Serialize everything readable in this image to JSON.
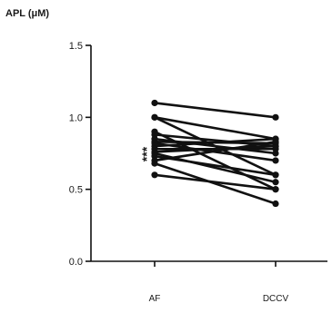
{
  "chart_data": {
    "type": "line",
    "title": "",
    "ylabel": "APL (μM)",
    "xlabel": "",
    "categories": [
      "AF",
      "DCCV"
    ],
    "ylim": [
      0,
      1.5
    ],
    "yticks": [
      "0.0",
      "0.5",
      "1.0",
      "1.5"
    ],
    "annotation": "***",
    "pairs": [
      [
        1.1,
        1.0
      ],
      [
        1.0,
        0.6
      ],
      [
        1.0,
        0.85
      ],
      [
        0.9,
        0.5
      ],
      [
        0.88,
        0.8
      ],
      [
        0.85,
        0.75
      ],
      [
        0.83,
        0.82
      ],
      [
        0.82,
        0.7
      ],
      [
        0.8,
        0.85
      ],
      [
        0.78,
        0.78
      ],
      [
        0.76,
        0.8
      ],
      [
        0.75,
        0.55
      ],
      [
        0.73,
        0.6
      ],
      [
        0.7,
        0.83
      ],
      [
        0.68,
        0.4
      ],
      [
        0.6,
        0.5
      ]
    ]
  }
}
